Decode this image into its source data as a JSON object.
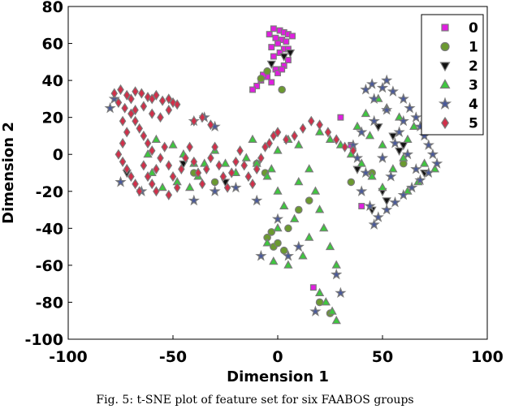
{
  "caption": "Fig. 5: t-SNE plot of feature set for six FAABOS groups",
  "colors": {
    "edge": "#7a7a7a",
    "0": "#e01ee0",
    "1": "#6b9a30",
    "2": "#111111",
    "3": "#3ec83e",
    "4": "#4a5a9a",
    "5": "#d0304a"
  },
  "chart_data": {
    "type": "scatter",
    "title": "",
    "xlabel": "Dimension 1",
    "ylabel": "Dimension 2",
    "xlim": [
      -100,
      100
    ],
    "ylim": [
      -100,
      80
    ],
    "xticks": [
      "-100",
      "-50",
      "0",
      "50",
      "100"
    ],
    "yticks": [
      "-100",
      "-80",
      "-60",
      "-40",
      "-20",
      "0",
      "20",
      "40",
      "60",
      "80"
    ],
    "legend_position": "top-right",
    "grid": false,
    "series": [
      {
        "name": "0",
        "marker": "square",
        "points": [
          [
            -2,
            68
          ],
          [
            1,
            67
          ],
          [
            3,
            66
          ],
          [
            5,
            65
          ],
          [
            -1,
            63
          ],
          [
            2,
            62
          ],
          [
            4,
            61
          ],
          [
            0,
            60
          ],
          [
            -3,
            58
          ],
          [
            3,
            57
          ],
          [
            1,
            55
          ],
          [
            -2,
            53
          ],
          [
            5,
            51
          ],
          [
            3,
            48
          ],
          [
            -1,
            46
          ],
          [
            0,
            44
          ],
          [
            -5,
            42
          ],
          [
            -8,
            40
          ],
          [
            -3,
            39
          ],
          [
            -10,
            37
          ],
          [
            -12,
            35
          ],
          [
            -7,
            43
          ],
          [
            2,
            46
          ],
          [
            5,
            57
          ],
          [
            7,
            64
          ],
          [
            -4,
            65
          ],
          [
            30,
            20
          ],
          [
            17,
            -72
          ],
          [
            40,
            -28
          ],
          [
            35,
            5
          ]
        ]
      },
      {
        "name": "1",
        "marker": "circle",
        "points": [
          [
            -5,
            -45
          ],
          [
            -2,
            -50
          ],
          [
            0,
            -48
          ],
          [
            3,
            -52
          ],
          [
            -3,
            -42
          ],
          [
            5,
            -40
          ],
          [
            20,
            -80
          ],
          [
            25,
            -86
          ],
          [
            -6,
            -10
          ],
          [
            -10,
            -5
          ],
          [
            10,
            -30
          ],
          [
            15,
            -25
          ],
          [
            35,
            -15
          ],
          [
            45,
            -10
          ],
          [
            60,
            -5
          ],
          [
            -8,
            41
          ],
          [
            -5,
            45
          ],
          [
            2,
            35
          ],
          [
            -40,
            -10
          ],
          [
            -30,
            -15
          ]
        ]
      },
      {
        "name": "2",
        "marker": "triangle-down",
        "points": [
          [
            6,
            55
          ],
          [
            3,
            53
          ],
          [
            -3,
            49
          ],
          [
            55,
            10
          ],
          [
            60,
            5
          ],
          [
            50,
            -20
          ],
          [
            45,
            -30
          ],
          [
            52,
            -25
          ],
          [
            70,
            -10
          ],
          [
            58,
            2
          ],
          [
            -25,
            -15
          ],
          [
            48,
            15
          ],
          [
            38,
            -8
          ],
          [
            -72,
            -10
          ],
          [
            -45,
            -5
          ]
        ]
      },
      {
        "name": "3",
        "marker": "triangle-up",
        "points": [
          [
            -10,
            -5
          ],
          [
            -5,
            -12
          ],
          [
            0,
            -20
          ],
          [
            3,
            -28
          ],
          [
            8,
            -35
          ],
          [
            10,
            -15
          ],
          [
            15,
            -8
          ],
          [
            18,
            -20
          ],
          [
            20,
            -30
          ],
          [
            22,
            -40
          ],
          [
            25,
            -50
          ],
          [
            15,
            -45
          ],
          [
            12,
            -55
          ],
          [
            5,
            -60
          ],
          [
            -2,
            -58
          ],
          [
            -5,
            -48
          ],
          [
            0,
            -40
          ],
          [
            28,
            -60
          ],
          [
            20,
            -75
          ],
          [
            23,
            -80
          ],
          [
            26,
            -85
          ],
          [
            28,
            -90
          ],
          [
            30,
            5
          ],
          [
            35,
            0
          ],
          [
            40,
            -5
          ],
          [
            45,
            -12
          ],
          [
            50,
            -18
          ],
          [
            55,
            -8
          ],
          [
            60,
            -2
          ],
          [
            62,
            8
          ],
          [
            65,
            15
          ],
          [
            58,
            20
          ],
          [
            52,
            25
          ],
          [
            48,
            30
          ],
          [
            42,
            22
          ],
          [
            38,
            15
          ],
          [
            44,
            10
          ],
          [
            50,
            5
          ],
          [
            70,
            -5
          ],
          [
            75,
            -8
          ],
          [
            67,
            -15
          ],
          [
            62,
            -20
          ],
          [
            -20,
            -10
          ],
          [
            -25,
            -5
          ],
          [
            -30,
            2
          ],
          [
            -35,
            -5
          ],
          [
            -38,
            -12
          ],
          [
            -42,
            -18
          ],
          [
            -48,
            -15
          ],
          [
            -55,
            -18
          ],
          [
            -60,
            -10
          ],
          [
            -62,
            0
          ],
          [
            -58,
            8
          ],
          [
            -50,
            5
          ],
          [
            -45,
            0
          ],
          [
            -40,
            -5
          ],
          [
            10,
            5
          ],
          [
            5,
            8
          ],
          [
            0,
            2
          ],
          [
            -3,
            -8
          ],
          [
            25,
            8
          ],
          [
            20,
            12
          ],
          [
            -15,
            -2
          ],
          [
            -12,
            8
          ]
        ]
      },
      {
        "name": "4",
        "marker": "star",
        "points": [
          [
            45,
            38
          ],
          [
            50,
            36
          ],
          [
            55,
            34
          ],
          [
            60,
            30
          ],
          [
            63,
            25
          ],
          [
            66,
            20
          ],
          [
            68,
            15
          ],
          [
            70,
            10
          ],
          [
            72,
            5
          ],
          [
            74,
            0
          ],
          [
            76,
            -5
          ],
          [
            72,
            -10
          ],
          [
            68,
            -14
          ],
          [
            64,
            -18
          ],
          [
            60,
            -22
          ],
          [
            56,
            -26
          ],
          [
            52,
            -30
          ],
          [
            48,
            -34
          ],
          [
            46,
            -38
          ],
          [
            44,
            -28
          ],
          [
            40,
            -20
          ],
          [
            42,
            -10
          ],
          [
            38,
            -2
          ],
          [
            36,
            5
          ],
          [
            40,
            12
          ],
          [
            46,
            18
          ],
          [
            52,
            24
          ],
          [
            58,
            12
          ],
          [
            62,
            0
          ],
          [
            66,
            -8
          ],
          [
            54,
            -12
          ],
          [
            50,
            -2
          ],
          [
            56,
            6
          ],
          [
            60,
            18
          ],
          [
            46,
            30
          ],
          [
            42,
            35
          ],
          [
            52,
            40
          ],
          [
            -35,
            20
          ],
          [
            -40,
            18
          ],
          [
            -30,
            15
          ],
          [
            -80,
            25
          ],
          [
            -78,
            30
          ],
          [
            -75,
            -15
          ],
          [
            -65,
            -20
          ],
          [
            -40,
            -25
          ],
          [
            -30,
            -20
          ],
          [
            -20,
            -18
          ],
          [
            -10,
            -25
          ],
          [
            0,
            -35
          ],
          [
            10,
            -50
          ],
          [
            5,
            -55
          ],
          [
            -8,
            -55
          ],
          [
            28,
            -65
          ],
          [
            30,
            -75
          ],
          [
            18,
            -85
          ]
        ]
      },
      {
        "name": "5",
        "marker": "diamond",
        "points": [
          [
            -78,
            33
          ],
          [
            -75,
            35
          ],
          [
            -72,
            32
          ],
          [
            -70,
            30
          ],
          [
            -68,
            34
          ],
          [
            -65,
            33
          ],
          [
            -62,
            31
          ],
          [
            -60,
            30
          ],
          [
            -58,
            32
          ],
          [
            -55,
            29
          ],
          [
            -52,
            30
          ],
          [
            -50,
            28
          ],
          [
            -48,
            27
          ],
          [
            -76,
            28
          ],
          [
            -73,
            25
          ],
          [
            -70,
            22
          ],
          [
            -68,
            18
          ],
          [
            -66,
            14
          ],
          [
            -64,
            10
          ],
          [
            -62,
            6
          ],
          [
            -60,
            2
          ],
          [
            -74,
            18
          ],
          [
            -72,
            12
          ],
          [
            -74,
            6
          ],
          [
            -76,
            0
          ],
          [
            -74,
            -4
          ],
          [
            -72,
            -8
          ],
          [
            -70,
            -12
          ],
          [
            -68,
            -16
          ],
          [
            -66,
            -20
          ],
          [
            -64,
            -6
          ],
          [
            -62,
            -12
          ],
          [
            -60,
            -16
          ],
          [
            -58,
            -8
          ],
          [
            -56,
            -2
          ],
          [
            -54,
            4
          ],
          [
            -52,
            -6
          ],
          [
            -50,
            -12
          ],
          [
            -48,
            -18
          ],
          [
            -46,
            -8
          ],
          [
            -44,
            -2
          ],
          [
            -42,
            4
          ],
          [
            -40,
            -4
          ],
          [
            -38,
            -10
          ],
          [
            -36,
            -16
          ],
          [
            -34,
            -8
          ],
          [
            -32,
            -2
          ],
          [
            -30,
            4
          ],
          [
            -28,
            -6
          ],
          [
            -26,
            -12
          ],
          [
            -24,
            -18
          ],
          [
            -22,
            -10
          ],
          [
            -20,
            -4
          ],
          [
            -18,
            2
          ],
          [
            -16,
            -6
          ],
          [
            -14,
            -12
          ],
          [
            -12,
            -16
          ],
          [
            -10,
            -8
          ],
          [
            -8,
            -2
          ],
          [
            -6,
            4
          ],
          [
            -4,
            6
          ],
          [
            -2,
            10
          ],
          [
            0,
            12
          ],
          [
            4,
            8
          ],
          [
            8,
            10
          ],
          [
            12,
            14
          ],
          [
            16,
            18
          ],
          [
            20,
            16
          ],
          [
            24,
            12
          ],
          [
            28,
            8
          ],
          [
            32,
            4
          ],
          [
            36,
            2
          ],
          [
            -40,
            18
          ],
          [
            -36,
            20
          ],
          [
            -32,
            16
          ],
          [
            -56,
            20
          ],
          [
            -52,
            24
          ],
          [
            -60,
            22
          ],
          [
            -64,
            26
          ],
          [
            -68,
            24
          ],
          [
            -58,
            -20
          ],
          [
            -52,
            -22
          ]
        ]
      }
    ]
  }
}
